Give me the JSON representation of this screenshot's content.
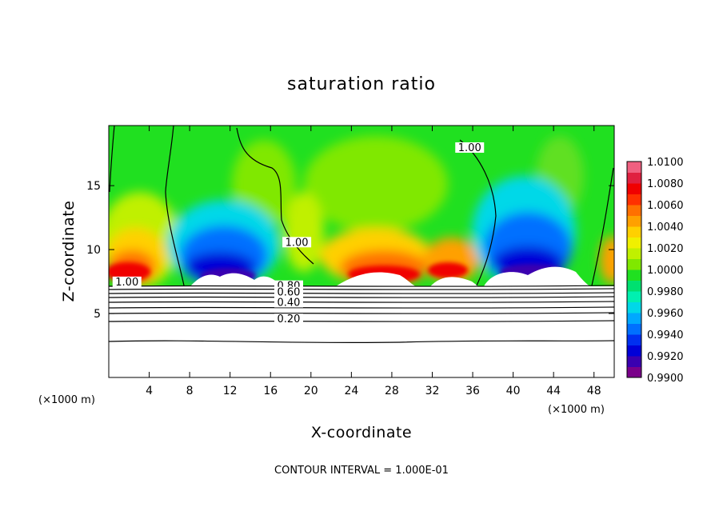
{
  "chart_data": {
    "type": "heatmap",
    "title": "saturation ratio",
    "xlabel": "X-coordinate",
    "ylabel": "Z-coordinate",
    "x_unit": "(×1000 m)",
    "z_unit": "(×1000 m)",
    "xlim": [
      0,
      50
    ],
    "ylim": [
      0,
      19.7
    ],
    "xticks": [
      4,
      8,
      12,
      16,
      20,
      24,
      28,
      32,
      36,
      40,
      44,
      48
    ],
    "yticks": [
      5,
      10,
      15
    ],
    "note": "CONTOUR INTERVAL = 1.000E-01",
    "colorbar": {
      "min": 0.99,
      "max": 1.01,
      "step": 0.001,
      "labels": [
        "1.0100",
        "1.0080",
        "1.0060",
        "1.0040",
        "1.0020",
        "1.0000",
        "0.9980",
        "0.9960",
        "0.9940",
        "0.9920",
        "0.9900"
      ],
      "colors": [
        "#7a008a",
        "#3a00b0",
        "#0000d8",
        "#0030f0",
        "#0070ff",
        "#00a8ff",
        "#00d8e8",
        "#00f0b0",
        "#00e070",
        "#20e020",
        "#80e800",
        "#c0f000",
        "#f0f000",
        "#ffd000",
        "#ffa000",
        "#ff7000",
        "#ff3000",
        "#f00000",
        "#e02040",
        "#f06080"
      ]
    },
    "contour_labels": [
      {
        "text": "1.00",
        "x": 1.8,
        "z": 7.2
      },
      {
        "text": "1.00",
        "x": 18.6,
        "z": 10.3
      },
      {
        "text": "1.00",
        "x": 35.7,
        "z": 17.7
      },
      {
        "text": "0.80",
        "x": 17.8,
        "z": 6.9
      },
      {
        "text": "0.60",
        "x": 17.8,
        "z": 6.4
      },
      {
        "text": "0.40",
        "x": 17.8,
        "z": 5.6
      },
      {
        "text": "0.20",
        "x": 17.8,
        "z": 4.3
      }
    ]
  }
}
